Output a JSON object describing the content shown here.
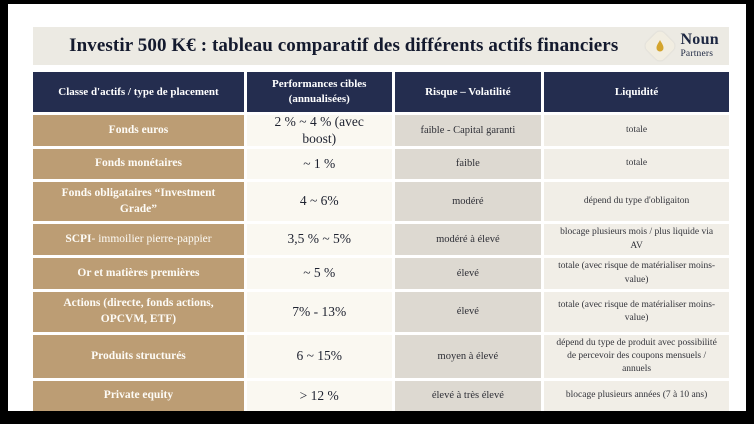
{
  "header": {
    "title": "Investir 500 K€ : tableau comparatif des différents actifs financiers",
    "logo": {
      "name": "Noun",
      "subname": "Partners",
      "icon": "drop-icon"
    }
  },
  "colors": {
    "frame_border": "#000000",
    "navy_header": "#242D4F",
    "tan_asset": "#BC9D74",
    "performance_bg": "#FAF8F1",
    "risk_bg": "#DDD9D1",
    "liquidity_bg": "#F1EEE7",
    "title_bar_bg": "#ECEAE3",
    "logo_gold": "#D4A42C",
    "logo_cream": "#F1EDE1",
    "logo_navy": "#1D2742"
  },
  "table": {
    "columns": [
      "Classe d'actifs / type de placement",
      "Performances cibles (annualisées)",
      "Risque – Volatilité",
      "Liquidité"
    ],
    "rows": [
      {
        "asset": "Fonds euros",
        "performance": "2 % ~ 4 % (avec boost)",
        "risk": "faible - Capital garanti",
        "liquidity": "totale"
      },
      {
        "asset": "Fonds monétaires",
        "performance": "~ 1 %",
        "risk": "faible",
        "liquidity": "totale"
      },
      {
        "asset": "Fonds obligataires “Investment Grade”",
        "performance": "4 ~ 6%",
        "risk": "modéré",
        "liquidity": "dépend du type d'obligaiton"
      },
      {
        "asset": "SCPI - immoilier pierre-pappier",
        "asset_bold_prefix": "SCPI",
        "performance": "3,5 % ~ 5%",
        "risk": "modéré à élevé",
        "liquidity": "blocage plusieurs mois / plus liquide via AV"
      },
      {
        "asset": "Or et matières premières",
        "performance": "~ 5 %",
        "risk": "élevé",
        "liquidity": "totale (avec risque de matérialiser moins-value)"
      },
      {
        "asset": "Actions (directe, fonds actions, OPCVM, ETF)",
        "performance": "7% - 13%",
        "risk": "élevé",
        "liquidity": "totale (avec risque de matérialiser moins-value)"
      },
      {
        "asset": "Produits structurés",
        "performance": "6 ~ 15%",
        "risk": "moyen à élevé",
        "liquidity": "dépend du type de produit avec possibilité de percevoir des coupons mensuels / annuels"
      },
      {
        "asset": "Private equity",
        "performance": "> 12 %",
        "risk": "élevé à très élevé",
        "liquidity": "blocage plusieurs années (7 à 10 ans)"
      }
    ]
  }
}
